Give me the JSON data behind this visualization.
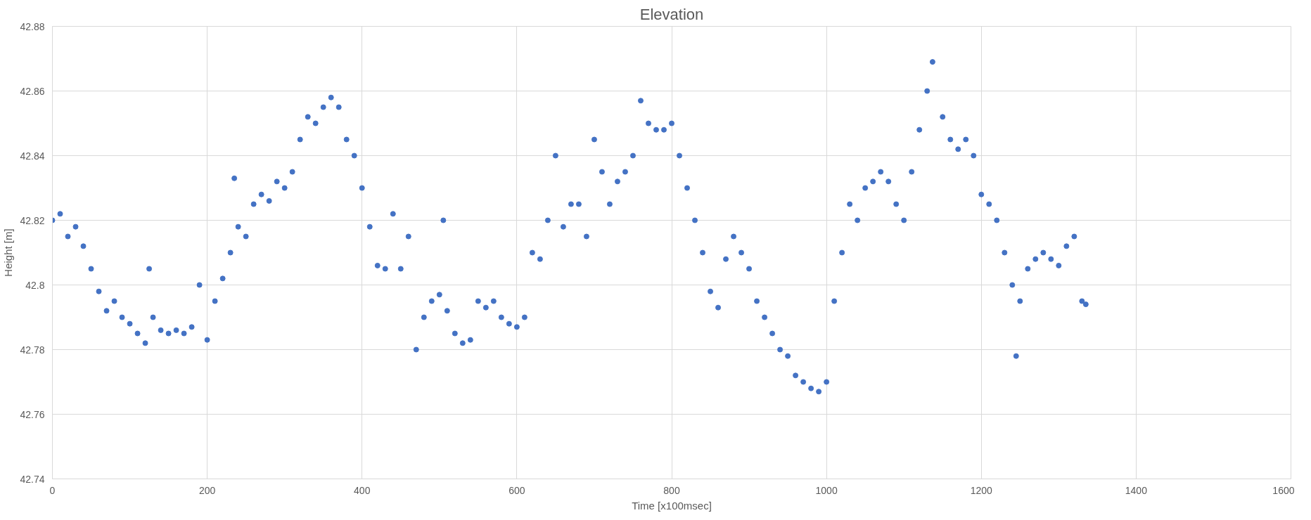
{
  "chart_data": {
    "type": "scatter",
    "title": "Elevation",
    "xlabel": "Time [x100msec]",
    "ylabel": "Height [m]",
    "xlim": [
      0,
      1600
    ],
    "xticks": [
      0,
      200,
      400,
      600,
      800,
      1000,
      1200,
      1400,
      1600
    ],
    "ylim": [
      42.74,
      42.88
    ],
    "yticks": [
      {
        "value": 42.74,
        "label": "42.74"
      },
      {
        "value": 42.76,
        "label": "42.76"
      },
      {
        "value": 42.78,
        "label": "42.78"
      },
      {
        "value": 42.8,
        "label": "42.8"
      },
      {
        "value": 42.82,
        "label": "42.82"
      },
      {
        "value": 42.84,
        "label": "42.84"
      },
      {
        "value": 42.86,
        "label": "42.86"
      },
      {
        "value": 42.88,
        "label": "42.88"
      }
    ],
    "grid": true,
    "marker": "circle",
    "series": [
      {
        "color": "#4472c4",
        "x": [
          0,
          10,
          20,
          30,
          40,
          50,
          60,
          70,
          80,
          90,
          100,
          110,
          120,
          125,
          130,
          140,
          150,
          160,
          170,
          180,
          190,
          200,
          210,
          220,
          230,
          235,
          240,
          250,
          260,
          270,
          280,
          290,
          300,
          310,
          320,
          330,
          340,
          350,
          360,
          370,
          380,
          390,
          400,
          410,
          420,
          430,
          440,
          450,
          460,
          470,
          480,
          490,
          500,
          505,
          510,
          520,
          530,
          540,
          550,
          560,
          570,
          580,
          590,
          600,
          610,
          620,
          630,
          640,
          650,
          660,
          670,
          680,
          690,
          700,
          710,
          720,
          730,
          740,
          750,
          760,
          770,
          780,
          790,
          800,
          810,
          820,
          830,
          840,
          850,
          860,
          870,
          880,
          890,
          900,
          910,
          920,
          930,
          940,
          950,
          960,
          970,
          980,
          990,
          1000,
          1010,
          1020,
          1030,
          1040,
          1050,
          1060,
          1070,
          1080,
          1090,
          1100,
          1110,
          1120,
          1130,
          1137,
          1150,
          1160,
          1170,
          1180,
          1190,
          1200,
          1210,
          1220,
          1230,
          1240,
          1245,
          1250,
          1260,
          1270,
          1280,
          1290,
          1300,
          1310,
          1320,
          1330,
          1335
        ],
        "values": [
          42.82,
          42.822,
          42.815,
          42.818,
          42.812,
          42.805,
          42.798,
          42.792,
          42.795,
          42.79,
          42.788,
          42.785,
          42.782,
          42.805,
          42.79,
          42.786,
          42.785,
          42.786,
          42.785,
          42.787,
          42.8,
          42.783,
          42.795,
          42.802,
          42.81,
          42.833,
          42.818,
          42.815,
          42.825,
          42.828,
          42.826,
          42.832,
          42.83,
          42.835,
          42.845,
          42.852,
          42.85,
          42.855,
          42.858,
          42.855,
          42.845,
          42.84,
          42.83,
          42.818,
          42.806,
          42.805,
          42.822,
          42.805,
          42.815,
          42.78,
          42.79,
          42.795,
          42.797,
          42.82,
          42.792,
          42.785,
          42.782,
          42.783,
          42.795,
          42.793,
          42.795,
          42.79,
          42.788,
          42.787,
          42.79,
          42.81,
          42.808,
          42.82,
          42.84,
          42.818,
          42.825,
          42.825,
          42.815,
          42.845,
          42.835,
          42.825,
          42.832,
          42.835,
          42.84,
          42.857,
          42.85,
          42.848,
          42.848,
          42.85,
          42.84,
          42.83,
          42.82,
          42.81,
          42.798,
          42.793,
          42.808,
          42.815,
          42.81,
          42.805,
          42.795,
          42.79,
          42.785,
          42.78,
          42.778,
          42.772,
          42.77,
          42.768,
          42.767,
          42.77,
          42.795,
          42.81,
          42.825,
          42.82,
          42.83,
          42.832,
          42.835,
          42.832,
          42.825,
          42.82,
          42.835,
          42.848,
          42.86,
          42.869,
          42.852,
          42.845,
          42.842,
          42.845,
          42.84,
          42.828,
          42.825,
          42.82,
          42.81,
          42.8,
          42.778,
          42.795,
          42.805,
          42.808,
          42.81,
          42.808,
          42.806,
          42.812,
          42.815,
          42.795,
          42.794
        ]
      }
    ]
  }
}
